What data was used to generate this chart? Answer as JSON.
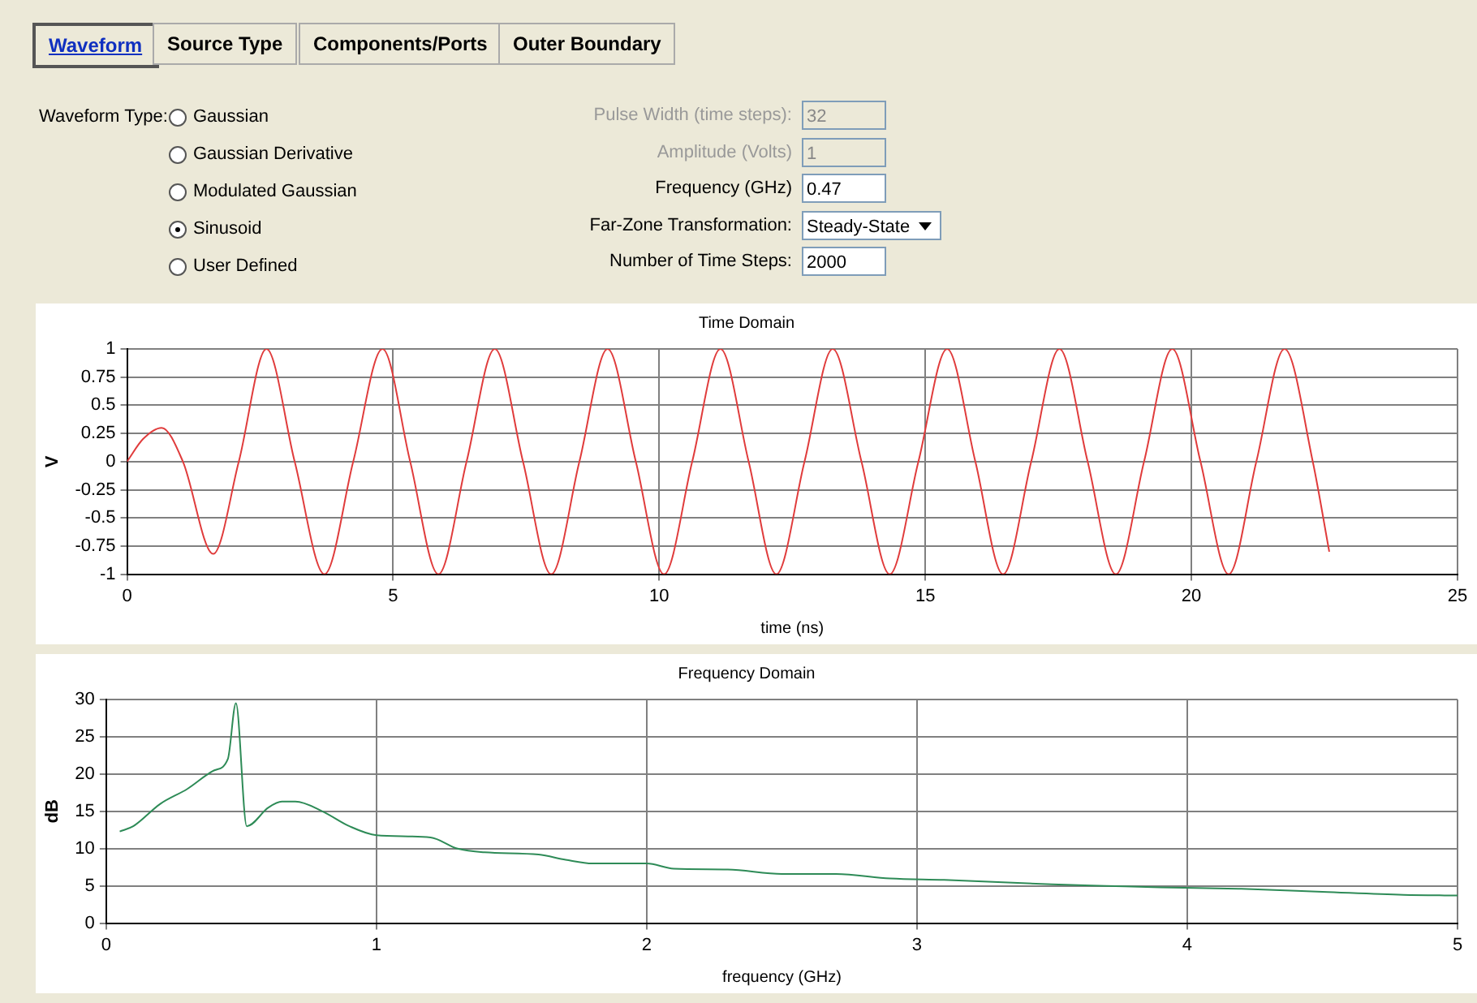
{
  "chart_data": [
    {
      "type": "other",
      "annotations": [
        "Waveform",
        "Source Type",
        "Components/Ports",
        "Outer Boundary",
        "Waveform Type:",
        "Gaussian",
        "Gaussian Derivative",
        "Modulated Gaussian",
        "Sinusoid",
        "User Defined",
        "Pulse Width (time steps):",
        "32",
        "Amplitude (Volts)",
        "1",
        "Frequency (GHz)",
        "0.47",
        "Far-Zone Transformation:",
        "Steady-State",
        "Number of Time Steps:",
        "2000"
      ]
    },
    {
      "type": "line",
      "title": "Time Domain",
      "xlabel": "time (ns)",
      "ylabel": "V",
      "grid": true,
      "marker": "none",
      "xlim": [
        0,
        25
      ],
      "xticks": [
        0,
        5,
        10,
        15,
        20,
        25
      ],
      "ylim": [
        -1,
        1
      ],
      "yticks": [
        -1,
        -0.75,
        -0.5,
        -0.25,
        0,
        0.25,
        0.5,
        0.75,
        1
      ],
      "x": [
        0,
        0.3,
        0.65,
        1.05,
        1.62,
        2.1,
        2.62,
        3.15,
        3.71,
        4.25,
        4.8,
        5.32,
        5.85,
        6.38,
        6.91,
        7.44,
        7.97,
        8.5,
        9.03,
        9.56,
        10.09,
        10.62,
        11.15,
        11.68,
        12.2,
        12.73,
        13.26,
        13.8,
        14.33,
        14.87,
        15.41,
        15.94,
        16.46,
        16.99,
        17.52,
        18.05,
        18.58,
        19.11,
        19.64,
        20.17,
        20.7,
        21.22,
        21.75,
        22.28,
        22.59
      ],
      "series": [
        {
          "color": "#e03c3c",
          "values": [
            0,
            0.2,
            0.3,
            0,
            -0.82,
            0,
            1,
            0,
            -1,
            0,
            1,
            0,
            -1,
            0,
            1,
            0,
            -1,
            0,
            1,
            0,
            -1,
            0,
            1,
            0,
            -1,
            0,
            1,
            0,
            -1,
            0,
            1,
            0,
            -1,
            0,
            1,
            0,
            -1,
            0,
            1,
            0,
            -1,
            0,
            1,
            0,
            -0.8
          ]
        }
      ]
    },
    {
      "type": "line",
      "title": "Frequency Domain",
      "xlabel": "frequency (GHz)",
      "ylabel": "dB",
      "grid": true,
      "marker": "none",
      "xlim": [
        0,
        5
      ],
      "xticks": [
        0,
        1,
        2,
        3,
        4,
        5
      ],
      "ylim": [
        0,
        30
      ],
      "yticks": [
        0,
        5,
        10,
        15,
        20,
        25,
        30
      ],
      "x": [
        0.05,
        0.1,
        0.2,
        0.3,
        0.4,
        0.45,
        0.48,
        0.52,
        0.6,
        0.65,
        0.7,
        0.8,
        0.9,
        1.0,
        1.2,
        1.3,
        1.4,
        1.6,
        1.7,
        1.8,
        2.0,
        2.1,
        2.3,
        2.5,
        2.7,
        2.9,
        3.1,
        3.5,
        3.7,
        3.9,
        4.2,
        4.5,
        4.8,
        5.0
      ],
      "series": [
        {
          "color": "#2e8b57",
          "values": [
            12.3,
            13,
            16,
            18,
            20.5,
            22,
            29.5,
            13,
            15.5,
            16.3,
            16.3,
            15,
            13,
            11.8,
            11.5,
            10,
            9.5,
            9.2,
            8.5,
            8,
            8,
            7.3,
            7.2,
            6.6,
            6.6,
            6,
            5.8,
            5.2,
            5,
            4.8,
            4.6,
            4.2,
            3.8,
            3.7
          ]
        }
      ]
    }
  ]
}
